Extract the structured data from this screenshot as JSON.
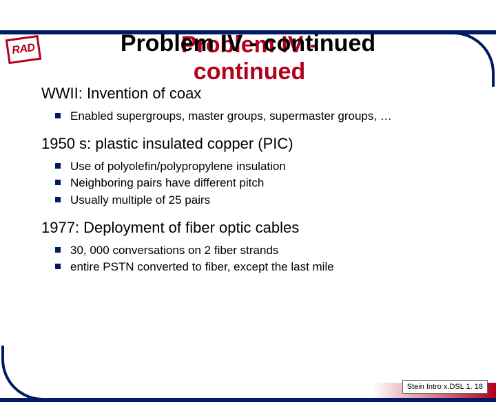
{
  "colors": {
    "navy": "#001a66",
    "red_shadow": "#b3001b",
    "bullet": "#001a66",
    "logo_border": "#b3001b",
    "logo_text": "#b3001b",
    "text": "#000000",
    "footer_bg": "#ffffff",
    "gradient_start": "#ffffff",
    "gradient_end": "#b3001b"
  },
  "logo": "RAD",
  "title": "Problem IV - continued",
  "sections": [
    {
      "heading": "WWII:  Invention of coax",
      "bullets": [
        "Enabled supergroups, master groups, supermaster groups, …"
      ]
    },
    {
      "heading": "1950 s: plastic insulated copper (PIC)",
      "bullets": [
        "Use of polyolefin/polypropylene insulation",
        "Neighboring pairs have different pitch",
        "Usually multiple of 25 pairs"
      ]
    },
    {
      "heading": "1977: Deployment of fiber optic cables",
      "bullets": [
        "30, 000 conversations on 2 fiber strands",
        "entire PSTN converted to fiber, except the last mile"
      ]
    }
  ],
  "footer": "Stein Intro x.DSL 1. 18",
  "fonts": {
    "title_size": 34,
    "heading_size": 22,
    "bullet_size": 17,
    "footer_size": 11
  }
}
